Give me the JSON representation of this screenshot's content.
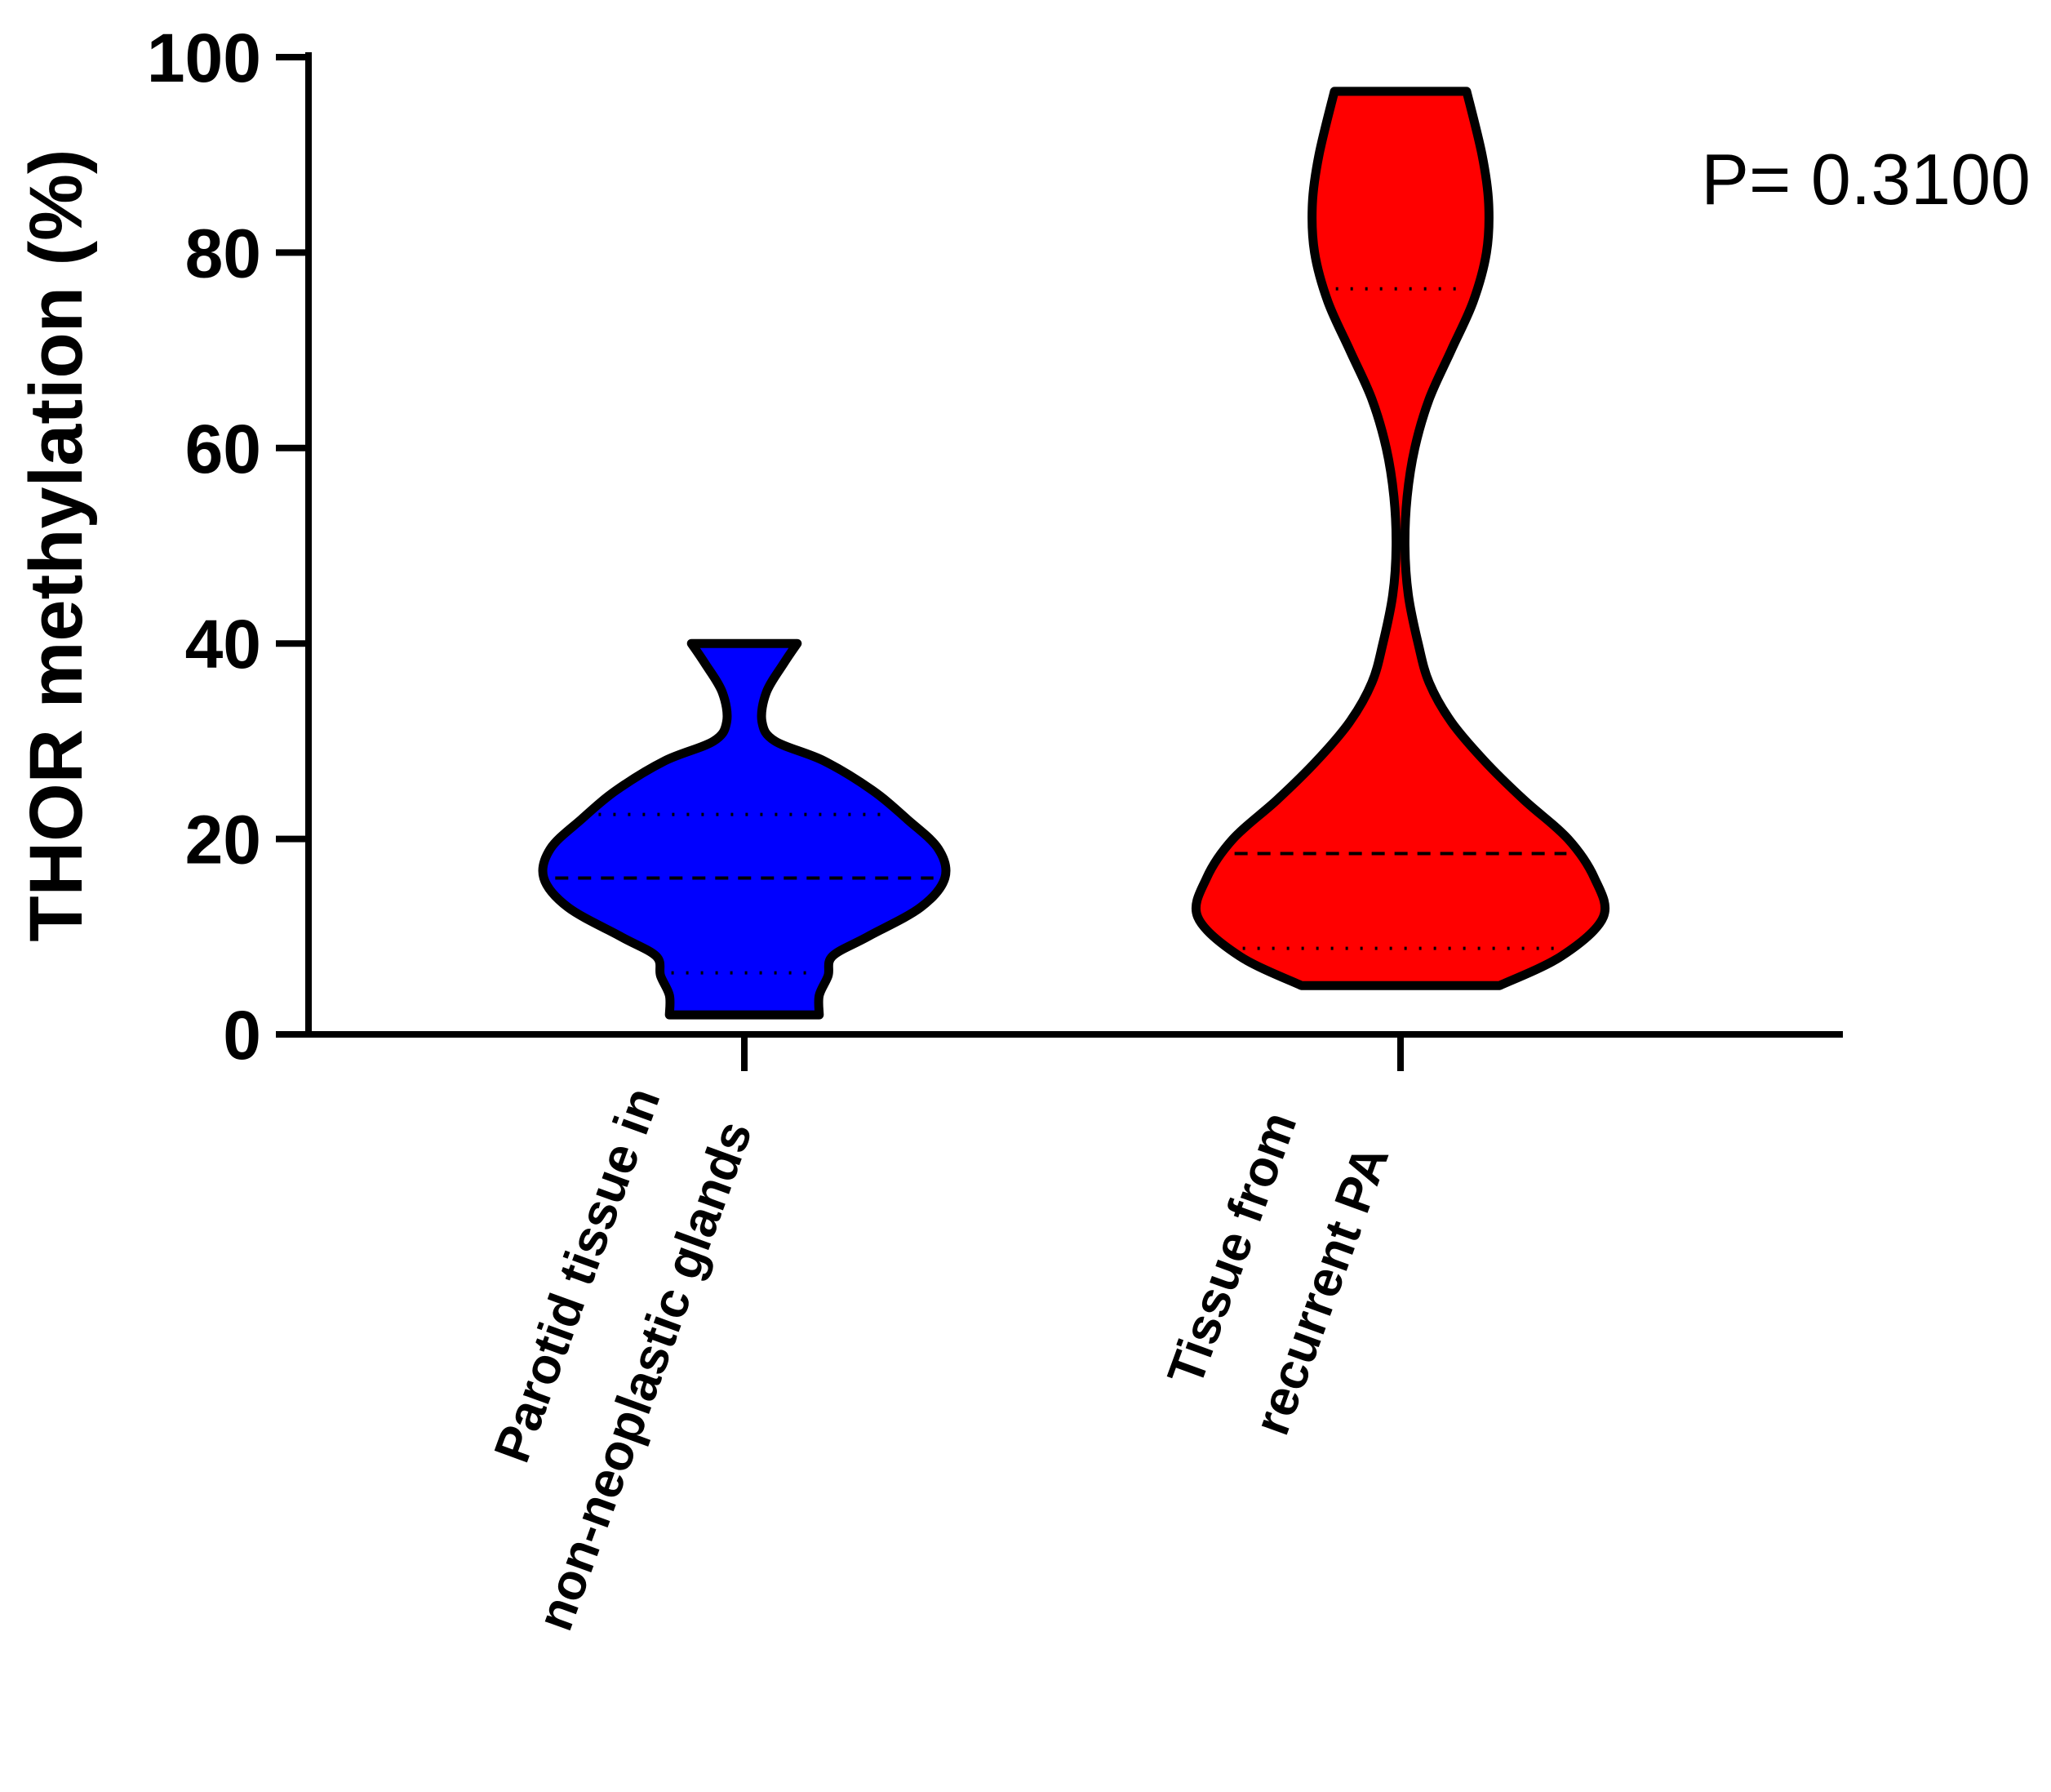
{
  "chart_data": {
    "type": "violin",
    "ylabel": "THOR methylation (%)",
    "ylim": [
      0,
      100
    ],
    "yticks": [
      0,
      20,
      40,
      60,
      80,
      100
    ],
    "annotation": "P= 0.3100",
    "categories": [
      {
        "lines": [
          "Parotid tissue in",
          "non-neoplastic glands"
        ]
      },
      {
        "lines": [
          "Tissue from",
          "recurrent PA"
        ]
      }
    ],
    "series": [
      {
        "color": "#0000ff",
        "min": 2,
        "max": 40,
        "median": 16,
        "q1": 6.3,
        "q3": 22.5,
        "profile": [
          [
            2,
            0.34
          ],
          [
            4,
            0.34
          ],
          [
            6,
            0.38
          ],
          [
            8,
            0.4
          ],
          [
            10,
            0.56
          ],
          [
            13,
            0.8
          ],
          [
            16,
            0.91
          ],
          [
            19,
            0.88
          ],
          [
            22,
            0.74
          ],
          [
            25,
            0.58
          ],
          [
            28,
            0.36
          ],
          [
            30,
            0.14
          ],
          [
            32,
            0.08
          ],
          [
            35,
            0.1
          ],
          [
            38,
            0.18
          ],
          [
            40,
            0.24
          ]
        ]
      },
      {
        "color": "#ff0000",
        "min": 5,
        "max": 96.5,
        "median": 18.5,
        "q1": 8.8,
        "q3": 76.3,
        "profile": [
          [
            5,
            0.45
          ],
          [
            8,
            0.73
          ],
          [
            12,
            0.92
          ],
          [
            16,
            0.88
          ],
          [
            20,
            0.76
          ],
          [
            24,
            0.56
          ],
          [
            28,
            0.38
          ],
          [
            32,
            0.23
          ],
          [
            36,
            0.13
          ],
          [
            40,
            0.08
          ],
          [
            45,
            0.035
          ],
          [
            50,
            0.02
          ],
          [
            55,
            0.03
          ],
          [
            60,
            0.065
          ],
          [
            65,
            0.13
          ],
          [
            70,
            0.23
          ],
          [
            75,
            0.33
          ],
          [
            80,
            0.39
          ],
          [
            85,
            0.4
          ],
          [
            90,
            0.37
          ],
          [
            96.5,
            0.3
          ]
        ]
      }
    ]
  }
}
